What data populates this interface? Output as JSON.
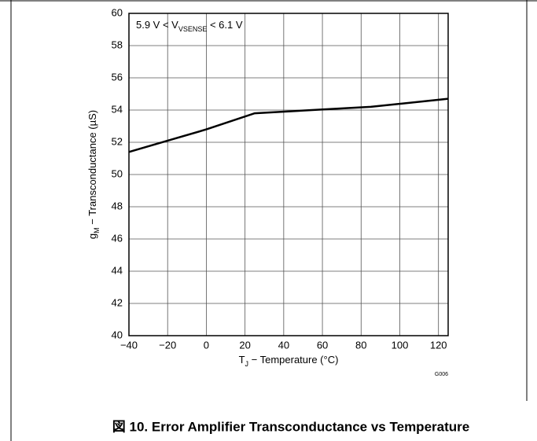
{
  "chart_data": {
    "type": "line",
    "annotation": [
      "5.9 V < V",
      "VSENSE",
      " < 6.1 V"
    ],
    "x_label": [
      "T",
      "J",
      " − Temperature (°C)"
    ],
    "y_label": [
      "g",
      "M",
      " − Transconductance (µS)"
    ],
    "code": "G006",
    "caption": "図 10. Error Amplifier Transconductance vs Temperature",
    "x": [
      -40,
      -20,
      0,
      25,
      85,
      125
    ],
    "series": [
      {
        "name": "gM",
        "color": "#000000",
        "values": [
          51.4,
          52.1,
          52.8,
          53.8,
          54.2,
          54.7
        ]
      }
    ],
    "xlim": [
      -40,
      125
    ],
    "xticks": [
      {
        "value": -40,
        "label": "−40"
      },
      {
        "value": -20,
        "label": "−20"
      },
      0,
      20,
      40,
      60,
      80,
      100,
      120
    ],
    "ylim": [
      40,
      60
    ],
    "yticks": [
      40,
      42,
      44,
      46,
      48,
      50,
      52,
      54,
      56,
      58,
      60
    ],
    "grid": true
  }
}
